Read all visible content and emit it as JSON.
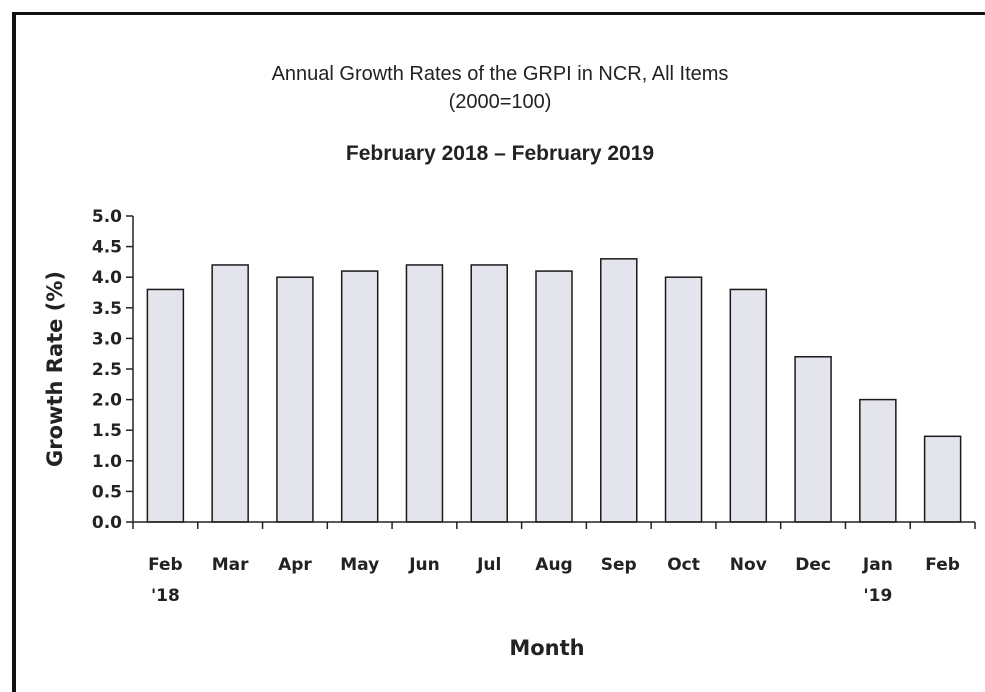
{
  "chart_data": {
    "type": "bar",
    "title": "Annual Growth Rates of the GRPI in NCR, All Items",
    "subtitle": "(2000=100)",
    "period": "February 2018 – February 2019",
    "xlabel": "Month",
    "ylabel": "Growth Rate (%)",
    "categories": [
      "Feb",
      "Mar",
      "Apr",
      "May",
      "Jun",
      "Jul",
      "Aug",
      "Sep",
      "Oct",
      "Nov",
      "Dec",
      "Jan",
      "Feb"
    ],
    "category_sublabels": [
      "'18",
      "",
      "",
      "",
      "",
      "",
      "",
      "",
      "",
      "",
      "",
      "'19",
      ""
    ],
    "values": [
      3.8,
      4.2,
      4.0,
      4.1,
      4.2,
      4.2,
      4.1,
      4.3,
      4.0,
      3.8,
      2.7,
      2.0,
      1.4
    ],
    "ylim": [
      0,
      5
    ],
    "yticks": [
      "0.0",
      "0.5",
      "1.0",
      "1.5",
      "2.0",
      "2.5",
      "3.0",
      "3.5",
      "4.0",
      "4.5",
      "5.0"
    ],
    "grid": false,
    "bar_color": "#e4e4ec",
    "bar_edge_color": "#1a1a1a"
  }
}
